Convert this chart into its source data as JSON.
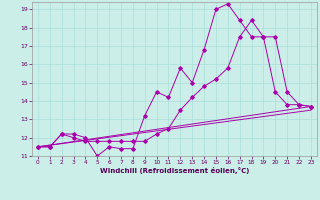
{
  "xlabel": "Windchill (Refroidissement éolien,°C)",
  "background_color": "#cceee8",
  "grid_color": "#aaddd8",
  "line_color": "#aa00aa",
  "xlim": [
    -0.5,
    23.5
  ],
  "ylim": [
    11,
    19.4
  ],
  "xticks": [
    0,
    1,
    2,
    3,
    4,
    5,
    6,
    7,
    8,
    9,
    10,
    11,
    12,
    13,
    14,
    15,
    16,
    17,
    18,
    19,
    20,
    21,
    22,
    23
  ],
  "yticks": [
    11,
    12,
    13,
    14,
    15,
    16,
    17,
    18,
    19
  ],
  "series1_x": [
    0,
    1,
    2,
    3,
    4,
    5,
    6,
    7,
    8,
    9,
    10,
    11,
    12,
    13,
    14,
    15,
    16,
    17,
    18,
    19,
    20,
    21,
    22,
    23
  ],
  "series1_y": [
    11.5,
    11.5,
    12.2,
    12.2,
    12.0,
    11.0,
    11.5,
    11.4,
    11.4,
    13.2,
    14.5,
    14.2,
    15.8,
    15.0,
    16.8,
    19.0,
    19.3,
    18.4,
    17.5,
    17.5,
    14.5,
    13.8,
    13.8,
    13.7
  ],
  "series2_x": [
    0,
    1,
    2,
    3,
    4,
    5,
    6,
    7,
    8,
    9,
    10,
    11,
    12,
    13,
    14,
    15,
    16,
    17,
    18,
    19,
    20,
    21,
    22,
    23
  ],
  "series2_y": [
    11.5,
    11.5,
    12.2,
    12.0,
    11.8,
    11.8,
    11.8,
    11.8,
    11.8,
    11.8,
    12.2,
    12.5,
    13.5,
    14.2,
    14.8,
    15.2,
    15.8,
    17.5,
    18.4,
    17.5,
    17.5,
    14.5,
    13.8,
    13.7
  ],
  "series3_x": [
    0,
    23
  ],
  "series3_y": [
    11.5,
    13.7
  ],
  "series4_x": [
    0,
    23
  ],
  "series4_y": [
    11.5,
    13.7
  ]
}
